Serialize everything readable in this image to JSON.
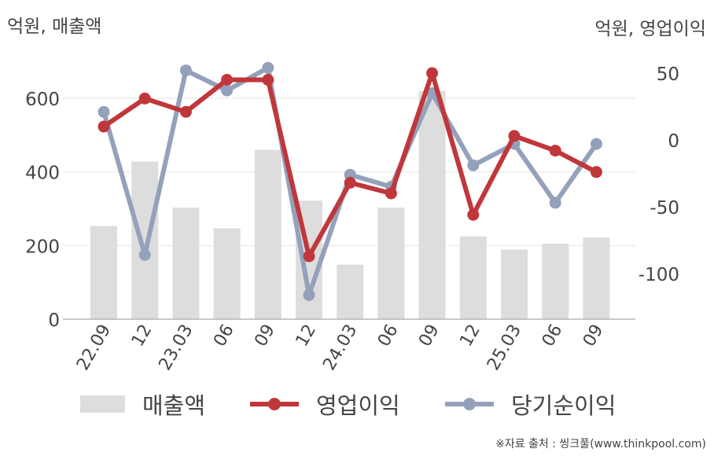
{
  "units": {
    "left": "억원, 매출액",
    "right": "억원, 영업이익"
  },
  "source": "※자료 출처 : 씽크풀(www.thinkpool.com)",
  "colors": {
    "bar": "#dddddd",
    "operating": "#c0373b",
    "net": "#94a1bb",
    "grid": "#e6e6e6",
    "axis": "#aaaaaa",
    "text": "#444444"
  },
  "chart_data": {
    "type": "bar",
    "categories": [
      "22.09",
      "12",
      "23.03",
      "06",
      "09",
      "12",
      "24.03",
      "06",
      "09",
      "12",
      "25.03",
      "06",
      "09"
    ],
    "series": [
      {
        "name": "매출액",
        "type": "bar",
        "axis": "left",
        "values": [
          253,
          428,
          303,
          247,
          460,
          322,
          148,
          303,
          620,
          225,
          189,
          205,
          222
        ]
      },
      {
        "name": "영업이익",
        "type": "line",
        "axis": "right",
        "values": [
          10,
          31,
          21,
          45,
          45,
          -87,
          -32,
          -40,
          50,
          -56,
          3,
          -8,
          -24
        ]
      },
      {
        "name": "당기순이익",
        "type": "line",
        "axis": "right",
        "values": [
          21,
          -86,
          52,
          37,
          54,
          -116,
          -26,
          -35,
          35,
          -19,
          -3,
          -47,
          -3
        ]
      }
    ],
    "y_left": {
      "min": 0,
      "max": 700,
      "ticks": [
        0,
        200,
        400,
        600
      ]
    },
    "y_right": {
      "min": -135,
      "max": 70,
      "ticks": [
        -100,
        -50,
        0,
        50
      ]
    },
    "grid": true,
    "legend": "bottom"
  }
}
